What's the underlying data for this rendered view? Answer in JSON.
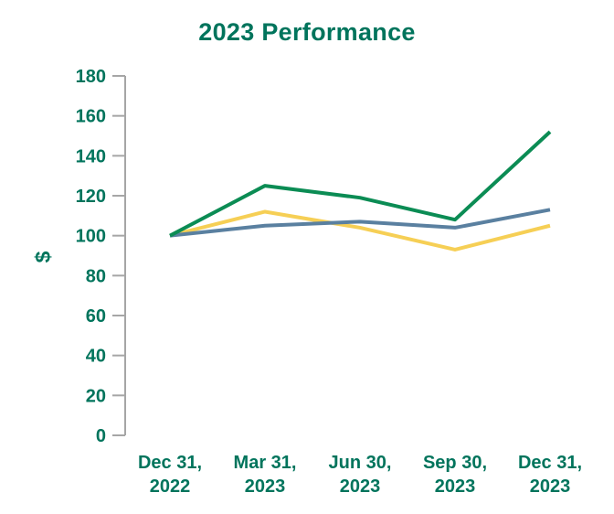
{
  "colors": {
    "text_green": "#00745c",
    "axis_gray": "#a6a6a6",
    "background": "#ffffff"
  },
  "chart_data": {
    "type": "line",
    "title": "2023 Performance",
    "xlabel": "",
    "ylabel": "$",
    "ylim": [
      0,
      180
    ],
    "yticks": [
      0,
      20,
      40,
      60,
      80,
      100,
      120,
      140,
      160,
      180
    ],
    "grid": false,
    "legend_position": "none",
    "categories": [
      {
        "line1": "Dec 31,",
        "line2": "2022"
      },
      {
        "line1": "Mar 31,",
        "line2": "2023"
      },
      {
        "line1": "Jun 30,",
        "line2": "2023"
      },
      {
        "line1": "Sep 30,",
        "line2": "2023"
      },
      {
        "line1": "Dec 31,",
        "line2": "2023"
      }
    ],
    "series": [
      {
        "name": "yellow-line",
        "color": "#f6cf55",
        "values": [
          100,
          112,
          104,
          93,
          105
        ]
      },
      {
        "name": "blue-line",
        "color": "#5a80a0",
        "values": [
          100,
          105,
          107,
          104,
          113
        ]
      },
      {
        "name": "green-line",
        "color": "#0b8c54",
        "values": [
          100,
          125,
          119,
          108,
          152
        ]
      }
    ]
  }
}
